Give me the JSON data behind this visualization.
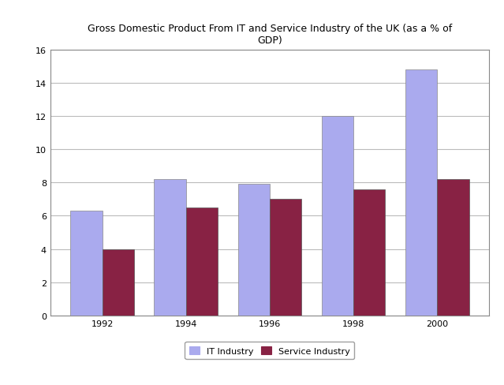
{
  "title": "Gross Domestic Product From IT and Service Industry of the UK (as a % of\nGDP)",
  "years": [
    "1992",
    "1994",
    "1996",
    "1998",
    "2000"
  ],
  "it_values": [
    6.3,
    8.2,
    7.9,
    12.0,
    14.8
  ],
  "service_values": [
    4.0,
    6.5,
    7.0,
    7.6,
    8.2
  ],
  "it_color": "#aaaaee",
  "service_color": "#882244",
  "ylim": [
    0,
    16
  ],
  "yticks": [
    0,
    2,
    4,
    6,
    8,
    10,
    12,
    14,
    16
  ],
  "legend_it": "IT Industry",
  "legend_service": "Service Industry",
  "bar_width": 0.38,
  "background_color": "#ffffff",
  "grid_color": "#bbbbbb",
  "title_fontsize": 9,
  "tick_fontsize": 8
}
